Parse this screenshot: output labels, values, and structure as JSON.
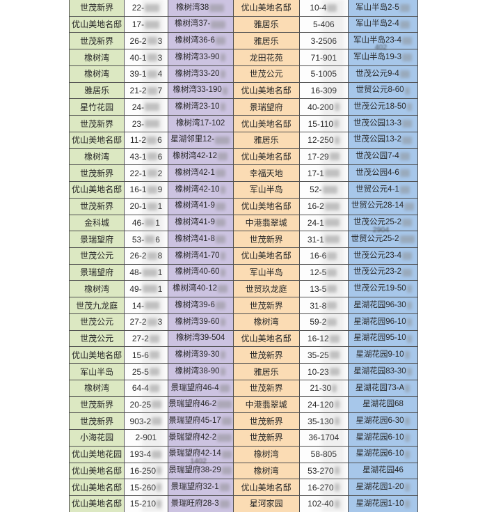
{
  "colors": {
    "col1_bg": "#dce8c2",
    "col2_bg": "#fdfdfd",
    "col3_bg": "#ccc3e1",
    "col4_bg": "#fbdcb4",
    "col5_bg": "#fdfdfd",
    "col6_bg": "#a7c7ea",
    "grid_line": "#4e4e4e",
    "text": "#262626",
    "page_bg": "#ffffff"
  },
  "table": {
    "note_on_encoding": "Asterisk runs are censored/blurred digit blobs visible only as gray smudges in the screenshot; '|' separates a wrapped second line inside the same cell.",
    "rows": [
      [
        "世茂新界",
        "22-***",
        "橡树湾38***",
        "优山美地名邸",
        "10-4**",
        "军山半岛2-5**"
      ],
      [
        "优山美地名邸",
        "17-***",
        "橡树湾37-***",
        "雅居乐",
        "5-406",
        "军山半岛2-4**"
      ],
      [
        "世茂新界",
        "26-2**3",
        "橡树湾36-6**",
        "雅居乐",
        "3-2506",
        "军山半岛23-4**|402"
      ],
      [
        "橡树湾",
        "40-1**3",
        "橡树湾33-90*",
        "龙田花苑",
        "71-901",
        "军山半岛19-3**"
      ],
      [
        "橡树湾",
        "39-1**4",
        "橡树湾33-20*",
        "世茂公元",
        "5-1005",
        "世茂公元9-4**"
      ],
      [
        "雅居乐",
        "21-2**7",
        "橡树湾33-190*",
        "优山美地名邸",
        "16-309",
        "世贸公元8-60*"
      ],
      [
        "星竹花园",
        "24-***",
        "橡树湾23-10*",
        "景瑞望府",
        "40-200*",
        "世茂公元18-50*"
      ],
      [
        "世茂新界",
        "23-***",
        "橡树湾17-102",
        "优山美地名邸",
        "15-110*",
        "世茂公园13-3**"
      ],
      [
        "优山美地名邸",
        "11-2**6",
        "星湖邻里12-***",
        "雅居乐",
        "12-250*",
        "世茂公园13-2**"
      ],
      [
        "橡树湾",
        "43-1**6",
        "橡树湾42-12**",
        "优山美地名邸",
        "17-29**",
        "世茂公园7-4**"
      ],
      [
        "世茂新界",
        "22-1**2",
        "橡树湾42-1**",
        "幸福天地",
        "17-1***",
        "世茂公园4-6**"
      ],
      [
        "优山美地名邸",
        "16-1**9",
        "橡树湾42-10*",
        "军山半岛",
        "52-***",
        "世贸公元4-1**"
      ],
      [
        "世茂新界",
        "20-1**1",
        "橡树湾41-9**",
        "优山美地名邸",
        "16-2***",
        "世贸公元28-14**"
      ],
      [
        "金科城",
        "46-**1",
        "橡树湾41-9**",
        "中港翡翠城",
        "24-1***",
        "世茂公元25-2**|2904"
      ],
      [
        "景瑞望府",
        "53-**6",
        "橡树湾41-8**",
        "世茂新界",
        "31-1***",
        "世贸公元25-2***"
      ],
      [
        "世茂公元",
        "26-2**8",
        "橡树湾41-70*",
        "优山美地名邸",
        "16-6**",
        "世茂公元23-4**"
      ],
      [
        "景瑞望府",
        "48-***1",
        "橡树湾40-60*",
        "军山半岛",
        "12-5**",
        "世茂公元23-2**"
      ],
      [
        "橡树湾",
        "49-***1",
        "橡树湾40-12**",
        "世贸玖龙庭",
        "13-5**",
        "世茂公元19-50*"
      ],
      [
        "世茂九龙庭",
        "14-***",
        "橡树湾39-6**",
        "世茂新界",
        "31-8**",
        "星湖花园96-30*"
      ],
      [
        "世茂公元",
        "27-2**3",
        "橡树湾39-60*",
        "橡树湾",
        "59-2**",
        "星湖花园96-10*"
      ],
      [
        "世茂公元",
        "27-2**",
        "橡树湾39-504",
        "优山美地名邸",
        "16-12**",
        "星湖花园95-10*"
      ],
      [
        "优山美地名邸",
        "15-6**",
        "橡树湾39-30*",
        "世茂新界",
        "35-25**",
        "星湖花园9-10*"
      ],
      [
        "军山半岛",
        "25-5**",
        "橡树湾38-90*",
        "雅居乐",
        "10-23**",
        "星湖花园83-30*"
      ],
      [
        "橡树湾",
        "64-4**",
        "景瑞望府46-4**",
        "世茂新界",
        "21-30*",
        "星湖花园73-A*"
      ],
      [
        "世茂新界",
        "20-25**",
        "景瑞望府46-2***",
        "中港翡翠城",
        "24-120*",
        "星湖花园68"
      ],
      [
        "世茂新界",
        "903-2**",
        "景瑞望府45-17**",
        "世茂新界",
        "35-130*",
        "星湖花园6-30*"
      ],
      [
        "小海花园",
        "2-901",
        "景瑞望府42-2***",
        "世茂新界",
        "36-1704",
        "星湖花园6-10*"
      ],
      [
        "优山美地花园",
        "193-4**",
        "景瑞望府42-14**|1402",
        "橡树湾",
        "58-805",
        "星湖花园6-10*"
      ],
      [
        "优山美地名邸",
        "16-250*",
        "景瑞望府38-29**",
        "橡树湾",
        "53-270*",
        "星湖花园46"
      ],
      [
        "优山美地名邸",
        "15-260*",
        "景瑞望府32-1**",
        "优山美地名邸",
        "16-270*",
        "星湖花园1-20*"
      ],
      [
        "优山美地名邸",
        "15-210*",
        "景瑞旺府28-3**",
        "星河家园",
        "102-40*",
        "星湖花园1-10*"
      ]
    ]
  }
}
